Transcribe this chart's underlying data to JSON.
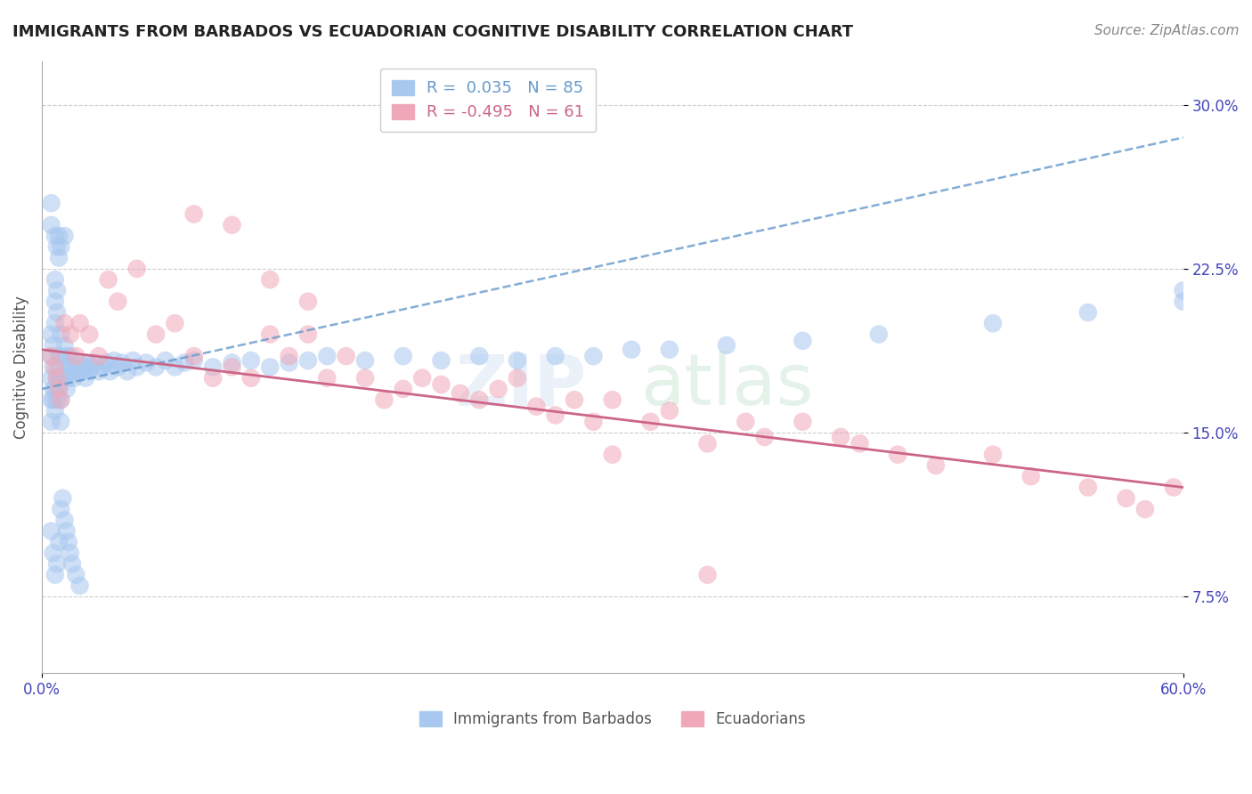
{
  "title": "IMMIGRANTS FROM BARBADOS VS ECUADORIAN COGNITIVE DISABILITY CORRELATION CHART",
  "source": "Source: ZipAtlas.com",
  "ylabel": "Cognitive Disability",
  "xlim": [
    0.0,
    0.6
  ],
  "ylim": [
    0.04,
    0.32
  ],
  "ytick_positions": [
    0.075,
    0.15,
    0.225,
    0.3
  ],
  "ytick_labels": [
    "7.5%",
    "15.0%",
    "22.5%",
    "30.0%"
  ],
  "blue_R": 0.035,
  "blue_N": 85,
  "pink_R": -0.495,
  "pink_N": 61,
  "blue_color": "#a8c8f0",
  "pink_color": "#f0a8b8",
  "blue_line_color": "#6699cc",
  "pink_line_color": "#cc6688",
  "blue_line_style": "--",
  "pink_line_style": "-",
  "legend_label_blue": "Immigrants from Barbados",
  "legend_label_pink": "Ecuadorians",
  "background_color": "#ffffff",
  "grid_color": "#cccccc",
  "title_color": "#222222",
  "axis_label_color": "#555555",
  "tick_label_color": "#4444bb",
  "blue_scatter_x": [
    0.005,
    0.005,
    0.005,
    0.005,
    0.005,
    0.006,
    0.006,
    0.006,
    0.006,
    0.007,
    0.007,
    0.007,
    0.007,
    0.007,
    0.008,
    0.008,
    0.008,
    0.008,
    0.009,
    0.009,
    0.009,
    0.009,
    0.01,
    0.01,
    0.01,
    0.01,
    0.01,
    0.012,
    0.012,
    0.013,
    0.013,
    0.014,
    0.014,
    0.015,
    0.015,
    0.016,
    0.017,
    0.018,
    0.019,
    0.02,
    0.021,
    0.022,
    0.023,
    0.024,
    0.025,
    0.026,
    0.028,
    0.03,
    0.032,
    0.034,
    0.036,
    0.038,
    0.04,
    0.042,
    0.045,
    0.048,
    0.05,
    0.055,
    0.06,
    0.065,
    0.07,
    0.075,
    0.08,
    0.09,
    0.1,
    0.11,
    0.12,
    0.13,
    0.14,
    0.15,
    0.17,
    0.19,
    0.21,
    0.23,
    0.25,
    0.27,
    0.29,
    0.31,
    0.33,
    0.36,
    0.4,
    0.44,
    0.5,
    0.55,
    0.6,
    0.6
  ],
  "blue_scatter_y": [
    0.175,
    0.185,
    0.195,
    0.165,
    0.155,
    0.18,
    0.19,
    0.165,
    0.17,
    0.2,
    0.21,
    0.22,
    0.17,
    0.16,
    0.215,
    0.205,
    0.175,
    0.165,
    0.18,
    0.17,
    0.185,
    0.175,
    0.195,
    0.185,
    0.175,
    0.165,
    0.155,
    0.19,
    0.175,
    0.185,
    0.17,
    0.18,
    0.175,
    0.18,
    0.185,
    0.178,
    0.175,
    0.18,
    0.178,
    0.182,
    0.178,
    0.18,
    0.175,
    0.182,
    0.178,
    0.18,
    0.182,
    0.178,
    0.18,
    0.182,
    0.178,
    0.183,
    0.18,
    0.182,
    0.178,
    0.183,
    0.18,
    0.182,
    0.18,
    0.183,
    0.18,
    0.182,
    0.183,
    0.18,
    0.182,
    0.183,
    0.18,
    0.182,
    0.183,
    0.185,
    0.183,
    0.185,
    0.183,
    0.185,
    0.183,
    0.185,
    0.185,
    0.188,
    0.188,
    0.19,
    0.192,
    0.195,
    0.2,
    0.205,
    0.21,
    0.215
  ],
  "blue_extra_x": [
    0.005,
    0.005,
    0.007,
    0.008,
    0.009,
    0.009,
    0.01,
    0.012,
    0.005,
    0.006,
    0.007,
    0.008,
    0.009,
    0.01,
    0.011,
    0.012,
    0.013,
    0.014,
    0.015,
    0.016,
    0.018,
    0.02
  ],
  "blue_extra_y": [
    0.255,
    0.245,
    0.24,
    0.235,
    0.23,
    0.24,
    0.235,
    0.24,
    0.105,
    0.095,
    0.085,
    0.09,
    0.1,
    0.115,
    0.12,
    0.11,
    0.105,
    0.1,
    0.095,
    0.09,
    0.085,
    0.08
  ],
  "pink_scatter_x": [
    0.005,
    0.007,
    0.008,
    0.009,
    0.01,
    0.012,
    0.015,
    0.018,
    0.02,
    0.025,
    0.03,
    0.035,
    0.04,
    0.05,
    0.06,
    0.07,
    0.08,
    0.09,
    0.1,
    0.11,
    0.12,
    0.13,
    0.14,
    0.15,
    0.16,
    0.17,
    0.18,
    0.19,
    0.2,
    0.21,
    0.22,
    0.23,
    0.24,
    0.25,
    0.26,
    0.27,
    0.28,
    0.29,
    0.3,
    0.32,
    0.33,
    0.35,
    0.37,
    0.38,
    0.4,
    0.42,
    0.43,
    0.45,
    0.47,
    0.5,
    0.52,
    0.55,
    0.57,
    0.58,
    0.595,
    0.08,
    0.1,
    0.12,
    0.14,
    0.3,
    0.35
  ],
  "pink_scatter_y": [
    0.185,
    0.18,
    0.175,
    0.17,
    0.165,
    0.2,
    0.195,
    0.185,
    0.2,
    0.195,
    0.185,
    0.22,
    0.21,
    0.225,
    0.195,
    0.2,
    0.185,
    0.175,
    0.18,
    0.175,
    0.195,
    0.185,
    0.195,
    0.175,
    0.185,
    0.175,
    0.165,
    0.17,
    0.175,
    0.172,
    0.168,
    0.165,
    0.17,
    0.175,
    0.162,
    0.158,
    0.165,
    0.155,
    0.165,
    0.155,
    0.16,
    0.145,
    0.155,
    0.148,
    0.155,
    0.148,
    0.145,
    0.14,
    0.135,
    0.14,
    0.13,
    0.125,
    0.12,
    0.115,
    0.125,
    0.25,
    0.245,
    0.22,
    0.21,
    0.14,
    0.085
  ],
  "blue_trend_x": [
    0.0,
    0.6
  ],
  "blue_trend_y": [
    0.17,
    0.285
  ],
  "pink_trend_x": [
    0.0,
    0.6
  ],
  "pink_trend_y": [
    0.188,
    0.125
  ]
}
